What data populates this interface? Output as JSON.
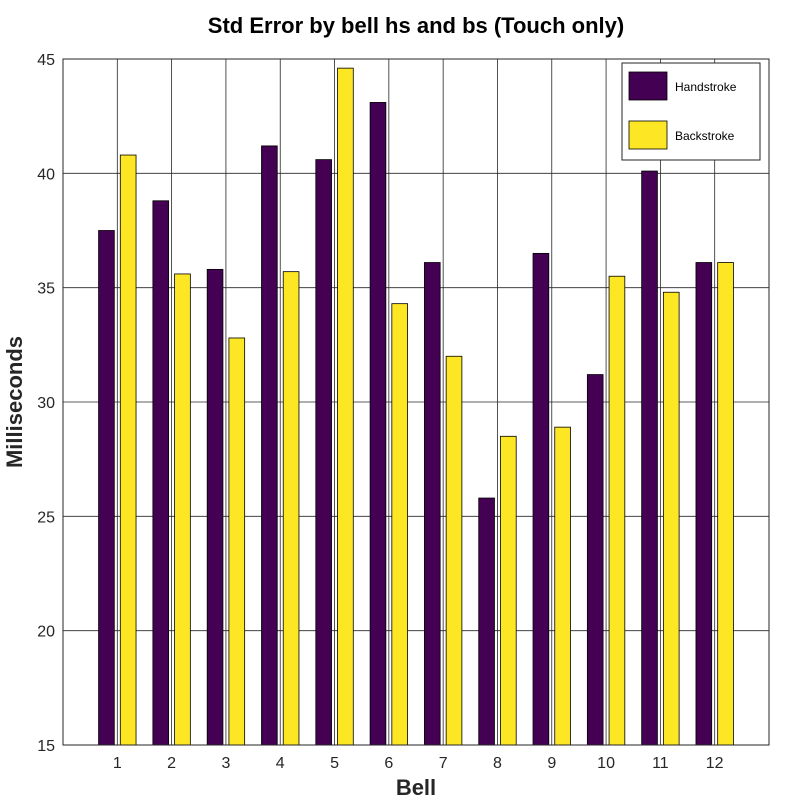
{
  "chart_data": {
    "type": "bar",
    "title": "Std Error by bell hs and bs (Touch only)",
    "xlabel": "Bell",
    "ylabel": "Milliseconds",
    "categories": [
      "1",
      "2",
      "3",
      "4",
      "5",
      "6",
      "7",
      "8",
      "9",
      "10",
      "11",
      "12"
    ],
    "yticks": [
      "15",
      "20",
      "25",
      "30",
      "35",
      "40",
      "45"
    ],
    "ylim": [
      15,
      45
    ],
    "grid": true,
    "legend_position": "top-right",
    "series": [
      {
        "name": "Handstroke",
        "color": "#440154",
        "values": [
          37.5,
          38.8,
          35.8,
          41.2,
          40.6,
          43.1,
          36.1,
          25.8,
          36.5,
          31.2,
          40.1,
          36.1
        ]
      },
      {
        "name": "Backstroke",
        "color": "#fde725",
        "values": [
          40.8,
          35.6,
          32.8,
          35.7,
          44.6,
          34.3,
          32.0,
          28.5,
          28.9,
          35.5,
          34.8,
          36.1
        ]
      }
    ]
  }
}
